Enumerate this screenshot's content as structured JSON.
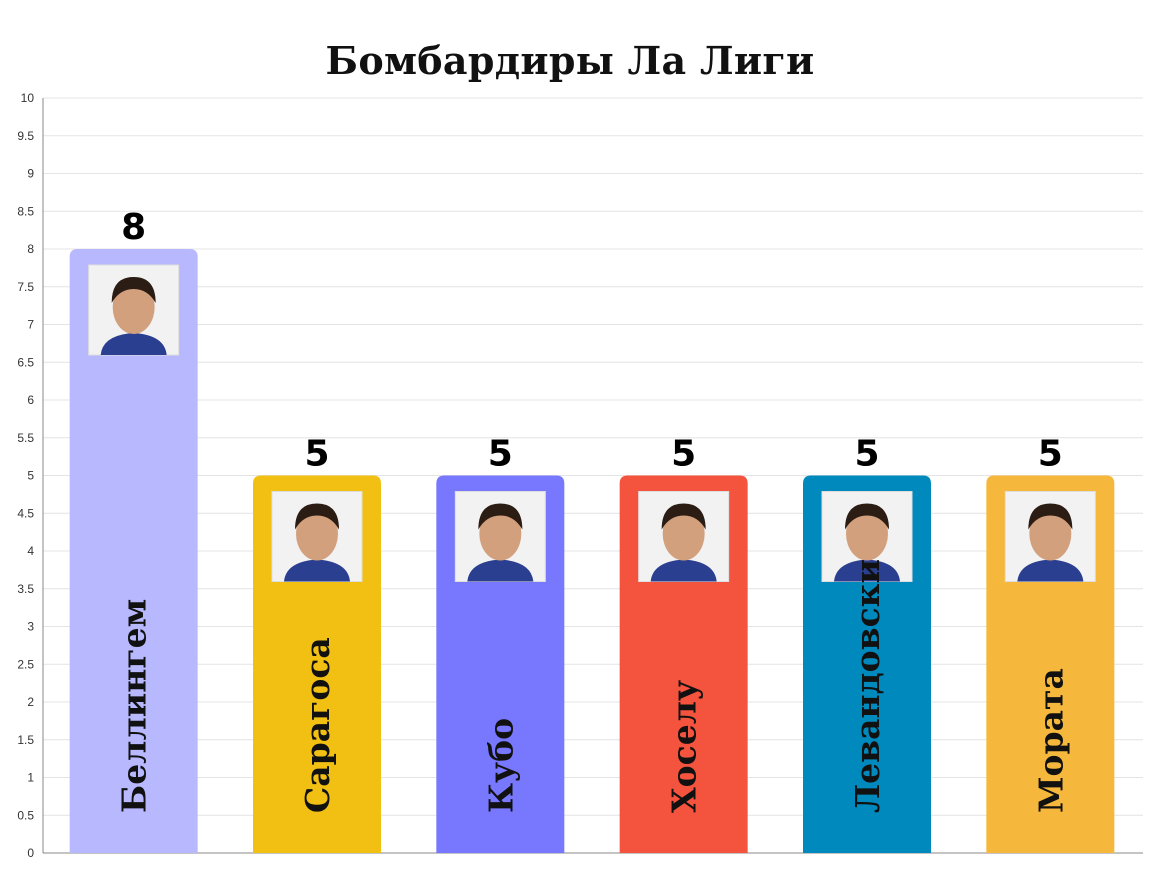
{
  "chart_data": {
    "type": "bar",
    "title": "Бомбардиры Ла Лиги",
    "xlabel": "",
    "ylabel": "",
    "ylim": [
      0,
      10
    ],
    "yticks": [
      "0",
      "0.5",
      "1",
      "1.5",
      "2",
      "2.5",
      "3",
      "3.5",
      "4",
      "4.5",
      "5",
      "5.5",
      "6",
      "6.5",
      "7",
      "7.5",
      "8",
      "8.5",
      "9",
      "9.5",
      "10"
    ],
    "grid": true,
    "categories": [
      "Беллингем",
      "Сарагоса",
      "Кубо",
      "Хоселу",
      "Левандовски",
      "Мората"
    ],
    "values": [
      8,
      5,
      5,
      5,
      5,
      5
    ],
    "value_labels": [
      "8",
      "5",
      "5",
      "5",
      "5",
      "5"
    ],
    "colors": [
      "#b8b8ff",
      "#f2c013",
      "#7878ff",
      "#f4533d",
      "#0089bd",
      "#f6b83c"
    ]
  }
}
